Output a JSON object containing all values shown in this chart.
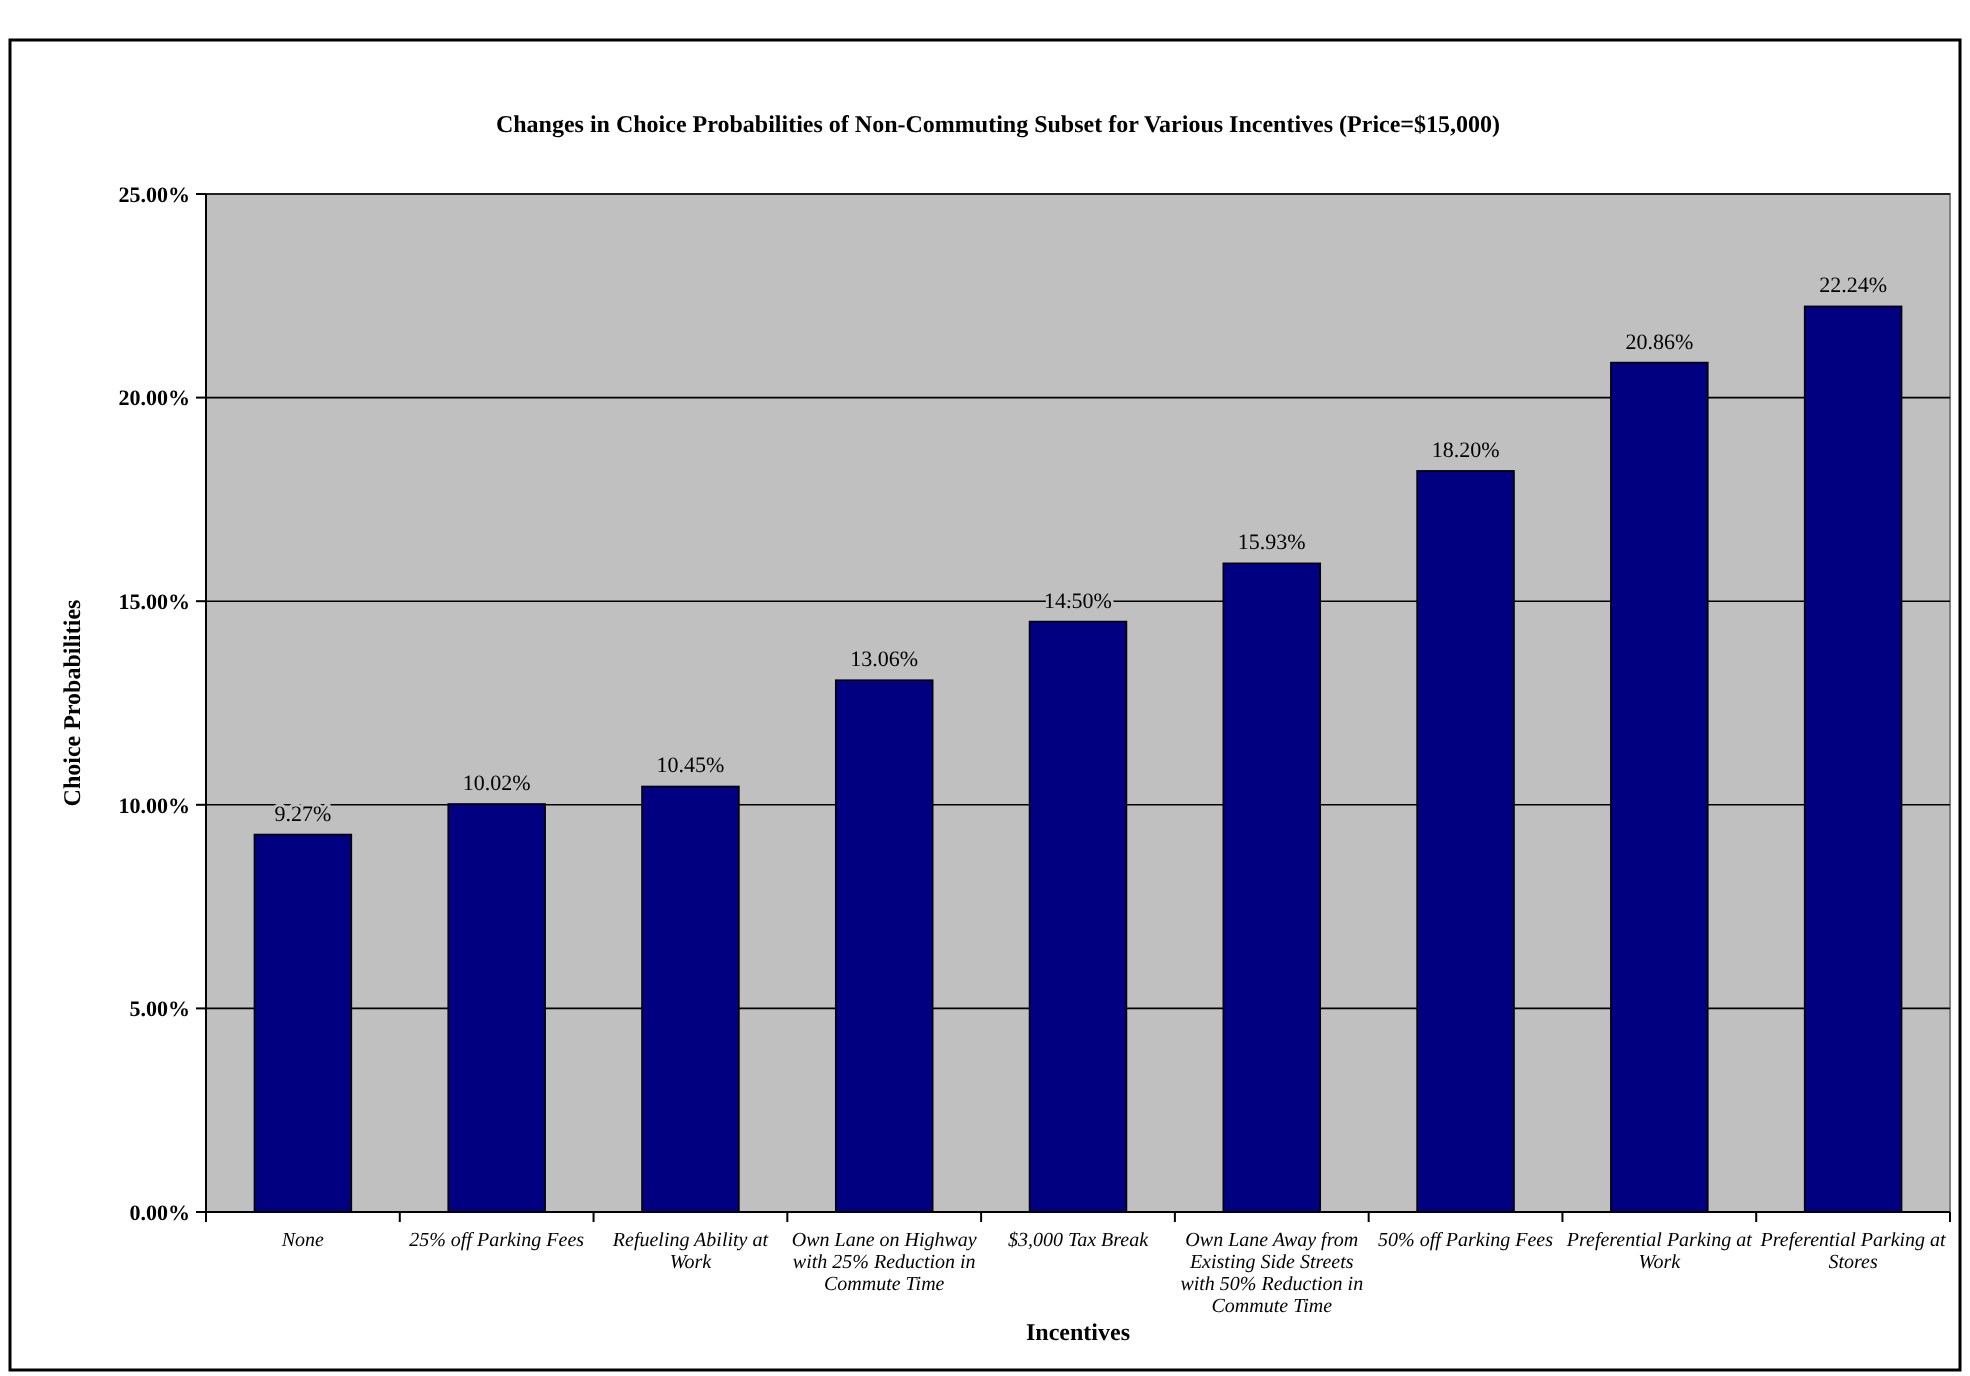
{
  "chart_data": {
    "type": "bar",
    "title": "Changes in Choice Probabilities of Non-Commuting Subset for Various Incentives (Price=$15,000)",
    "xlabel": "Incentives",
    "ylabel": "Choice Probabilities",
    "categories": [
      "None",
      "25% off Parking Fees",
      "Refueling Ability at Work",
      "Own Lane on Highway with 25% Reduction in Commute Time",
      "$3,000 Tax Break",
      "Own Lane Away from Existing Side Streets with 50% Reduction in Commute Time",
      "50% off Parking Fees",
      "Preferential Parking at Work",
      "Preferential Parking at Stores"
    ],
    "values": [
      9.27,
      10.02,
      10.45,
      13.06,
      14.5,
      15.93,
      18.2,
      20.86,
      22.24
    ],
    "value_labels": [
      "9.27%",
      "10.02%",
      "10.45%",
      "13.06%",
      "14.50%",
      "15.93%",
      "18.20%",
      "20.86%",
      "22.24%"
    ],
    "color": "#000080",
    "ylim": [
      0,
      25
    ],
    "yticks": [
      {
        "value": 0,
        "label": "0.00%"
      },
      {
        "value": 5,
        "label": "5.00%"
      },
      {
        "value": 10,
        "label": "10.00%"
      },
      {
        "value": 15,
        "label": "15.00%"
      },
      {
        "value": 20,
        "label": "20.00%"
      },
      {
        "value": 25,
        "label": "25.00%"
      }
    ],
    "grid": "y"
  }
}
